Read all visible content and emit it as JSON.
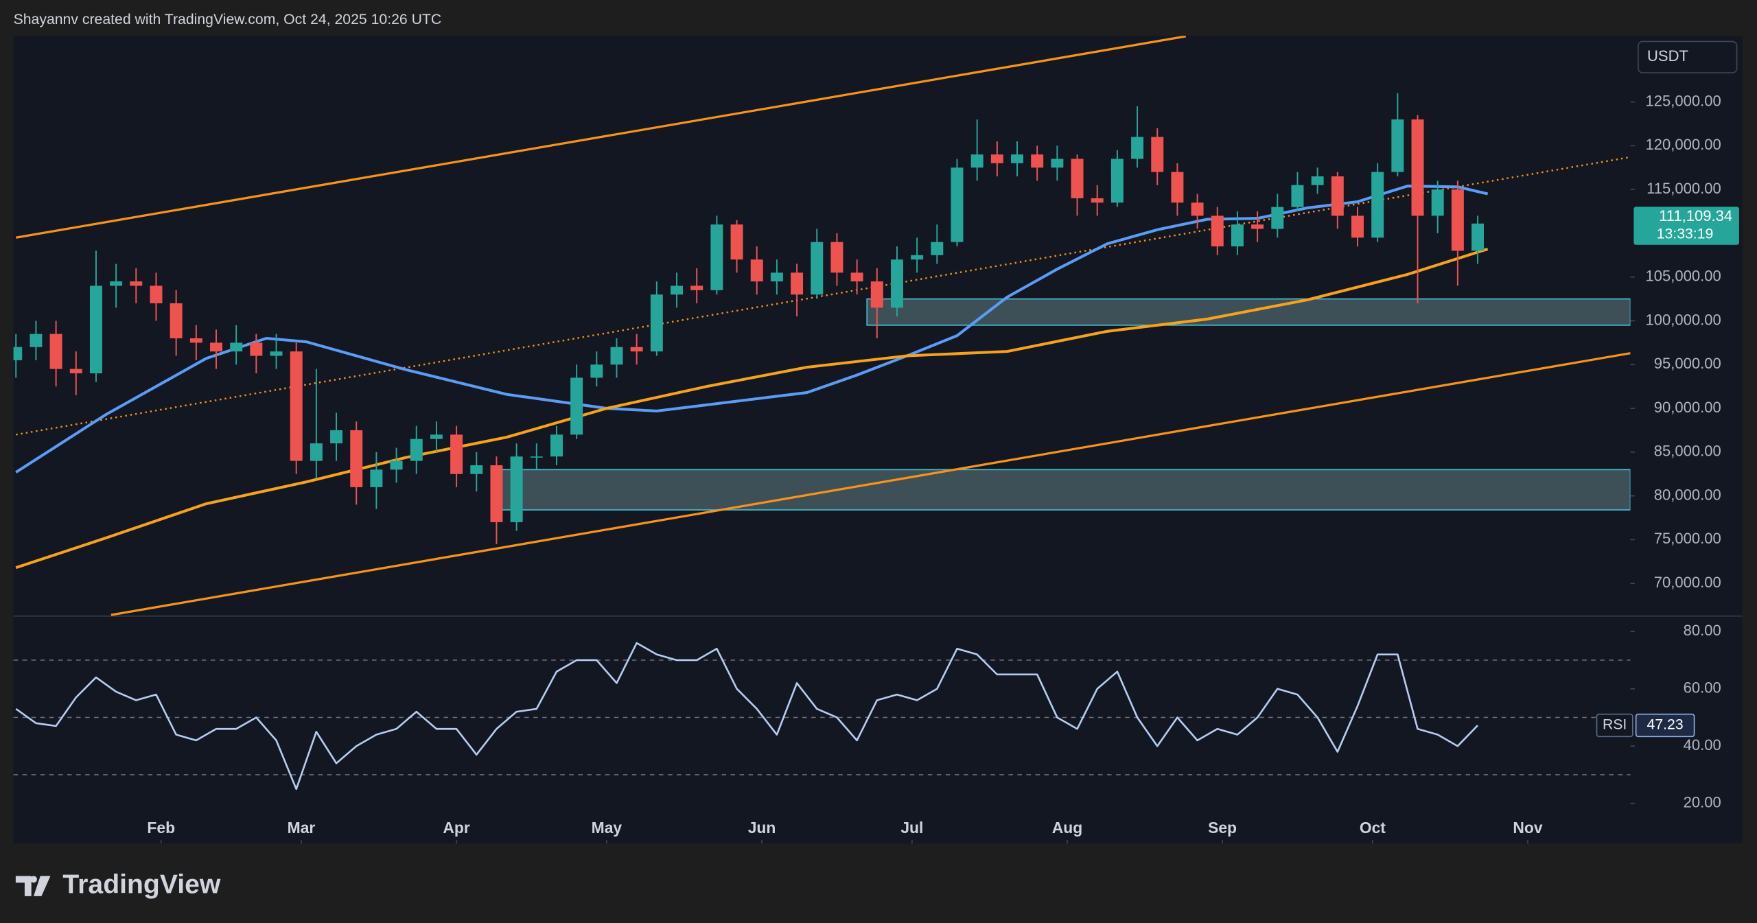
{
  "header": "Shayannv created with TradingView.com, Oct 24, 2025 10:26 UTC",
  "footer": {
    "brand": "TradingView"
  },
  "chart_data": [
    {
      "type": "candlestick",
      "currency": "USDT",
      "x": [
        2,
        6,
        10,
        14,
        18,
        22,
        26,
        30,
        34,
        38,
        42,
        46,
        50,
        54,
        58,
        62,
        66,
        70,
        74,
        78,
        82,
        86,
        90,
        94,
        98,
        102,
        106,
        110,
        114,
        118,
        122,
        126,
        130,
        134,
        138,
        142,
        146,
        150,
        154,
        158,
        162,
        166,
        170,
        174,
        178,
        182,
        186,
        190,
        194,
        198,
        202,
        206,
        210,
        214,
        218,
        222,
        226,
        230,
        234,
        238,
        242,
        246,
        250,
        254,
        258,
        262,
        266,
        270,
        274,
        278,
        282,
        286,
        290,
        294
      ],
      "open": [
        95500,
        97000,
        98500,
        94500,
        94000,
        104000,
        104500,
        104000,
        102000,
        98000,
        97500,
        96500,
        97500,
        96000,
        96500,
        84000,
        86000,
        87500,
        81000,
        83000,
        84000,
        86500,
        87000,
        82500,
        83500,
        77000,
        84500,
        84500,
        87000,
        93500,
        95000,
        97000,
        96500,
        103000,
        104000,
        103500,
        111000,
        107000,
        104500,
        105500,
        103000,
        109000,
        105500,
        104500,
        101500,
        107000,
        107500,
        109000,
        117500,
        119000,
        118000,
        119000,
        117500,
        118500,
        114000,
        113500,
        118500,
        121000,
        117000,
        113500,
        112000,
        108500,
        111000,
        110500,
        113000,
        115500,
        116500,
        112000,
        109500,
        117000,
        123000,
        112000,
        115000,
        108000
      ],
      "high": [
        98500,
        100000,
        100000,
        96500,
        108000,
        106500,
        106000,
        105500,
        103500,
        99500,
        99000,
        99500,
        98500,
        98500,
        97500,
        94500,
        89500,
        88500,
        85000,
        85500,
        88000,
        88500,
        88000,
        85000,
        84500,
        86000,
        86000,
        88000,
        95000,
        96500,
        98000,
        98500,
        104500,
        105500,
        106000,
        112000,
        111500,
        108500,
        107000,
        106500,
        110500,
        110000,
        107000,
        106000,
        108500,
        109500,
        111000,
        118500,
        123000,
        120500,
        120500,
        120000,
        120000,
        119000,
        115500,
        119500,
        124500,
        122000,
        118000,
        114500,
        113000,
        112500,
        112500,
        114500,
        117000,
        117500,
        117000,
        113000,
        118000,
        126000,
        123500,
        116000,
        116000,
        112000
      ],
      "low": [
        93500,
        95500,
        92500,
        91500,
        93000,
        101500,
        102000,
        100000,
        96000,
        95500,
        94500,
        95000,
        94000,
        94500,
        82500,
        82000,
        84000,
        79000,
        78500,
        81500,
        82500,
        85000,
        81000,
        80500,
        74500,
        76000,
        83000,
        83500,
        86500,
        92500,
        93500,
        95000,
        96000,
        101500,
        102000,
        103000,
        105500,
        103000,
        103000,
        100500,
        102500,
        104000,
        103000,
        98000,
        100500,
        105500,
        106500,
        108500,
        116000,
        116500,
        116500,
        116000,
        116000,
        112000,
        112000,
        113000,
        117500,
        115500,
        112000,
        110500,
        107500,
        107500,
        109000,
        109500,
        112500,
        114500,
        110500,
        108500,
        109000,
        116500,
        102000,
        110000,
        104000,
        106500
      ],
      "close": [
        97000,
        98500,
        94500,
        94000,
        104000,
        104500,
        104000,
        102000,
        98000,
        97500,
        96500,
        97500,
        96000,
        96500,
        84000,
        86000,
        87500,
        81000,
        83000,
        84000,
        86500,
        87000,
        82500,
        83500,
        77000,
        84500,
        84500,
        87000,
        93500,
        95000,
        97000,
        96500,
        103000,
        104000,
        103500,
        111000,
        107000,
        104500,
        105500,
        103000,
        109000,
        105500,
        104500,
        101500,
        107000,
        107500,
        109000,
        117500,
        119000,
        118000,
        119000,
        117500,
        118500,
        114000,
        113500,
        118500,
        121000,
        117000,
        113500,
        112000,
        108500,
        111000,
        110500,
        113000,
        115500,
        116500,
        112000,
        109500,
        117000,
        123000,
        112000,
        115000,
        108000,
        111109.34
      ],
      "up_color": "#26a69a",
      "down_color": "#ef5350",
      "moving_averages": [
        {
          "color": "#5b9cf6",
          "x": [
            2,
            20,
            40,
            52,
            60,
            80,
            100,
            120,
            130,
            150,
            160,
            170,
            180,
            190,
            200,
            210,
            220,
            230,
            240,
            250,
            260,
            270,
            280,
            290,
            296
          ],
          "values": [
            82700,
            89300,
            95700,
            98000,
            97600,
            94400,
            91600,
            90000,
            89700,
            91100,
            91800,
            93800,
            96000,
            98300,
            102700,
            105900,
            108800,
            110400,
            111600,
            111700,
            112900,
            113600,
            115400,
            115300,
            114500
          ]
        },
        {
          "color": "#f7a21b",
          "x": [
            2,
            20,
            40,
            60,
            80,
            100,
            120,
            140,
            160,
            180,
            200,
            220,
            240,
            260,
            280,
            296
          ],
          "values": [
            71800,
            75200,
            79100,
            81600,
            84400,
            86700,
            90000,
            92500,
            94700,
            96000,
            96500,
            98800,
            100200,
            102400,
            105300,
            108200
          ]
        }
      ],
      "trend_lines": [
        {
          "color": "#f7931a",
          "style": "solid",
          "x": [
            2,
            235.7
          ],
          "values": [
            109500,
            132500
          ]
        },
        {
          "color": "#f7931a",
          "style": "dotted",
          "x": [
            2,
            324.5
          ],
          "values": [
            87000,
            118700
          ]
        },
        {
          "color": "#f7931a",
          "style": "solid",
          "x": [
            21,
            324.5
          ],
          "values": [
            66400,
            96300
          ]
        }
      ],
      "zones": [
        {
          "x": [
            172,
            324.5
          ],
          "values": [
            99500,
            102500
          ]
        },
        {
          "x": [
            99,
            324.5
          ],
          "values": [
            78400,
            83000
          ]
        }
      ],
      "last_price": {
        "value": 111109.34,
        "label": "111,109.34"
      },
      "countdown": "13:33:19",
      "xlim": [
        1.5,
        324.5
      ],
      "ylim": [
        66400,
        132550
      ],
      "yticks": [
        {
          "value": 125000,
          "label": "125,000.00"
        },
        {
          "value": 120000,
          "label": "120,000.00"
        },
        {
          "value": 115000,
          "label": "115,000.00"
        },
        {
          "value": 105000,
          "label": "105,000.00"
        },
        {
          "value": 100000,
          "label": "100,000.00"
        },
        {
          "value": 95000,
          "label": "95,000.00"
        },
        {
          "value": 90000,
          "label": "90,000.00"
        },
        {
          "value": 85000,
          "label": "85,000.00"
        },
        {
          "value": 80000,
          "label": "80,000.00"
        },
        {
          "value": 75000,
          "label": "75,000.00"
        },
        {
          "value": 70000,
          "label": "70,000.00"
        }
      ]
    },
    {
      "type": "line",
      "x": [
        2,
        6,
        10,
        14,
        18,
        22,
        26,
        30,
        34,
        38,
        42,
        46,
        50,
        54,
        58,
        62,
        66,
        70,
        74,
        78,
        82,
        86,
        90,
        94,
        98,
        102,
        106,
        110,
        114,
        118,
        122,
        126,
        130,
        134,
        138,
        142,
        146,
        150,
        154,
        158,
        162,
        166,
        170,
        174,
        178,
        182,
        186,
        190,
        194,
        198,
        202,
        206,
        210,
        214,
        218,
        222,
        226,
        230,
        234,
        238,
        242,
        246,
        250,
        254,
        258,
        262,
        266,
        270,
        274,
        278,
        282,
        286,
        290,
        294
      ],
      "series": [
        {
          "name": "RSI",
          "color": "#b4cdf2",
          "values": [
            53,
            48,
            47,
            57,
            64,
            59,
            56,
            58,
            44,
            42,
            46,
            46,
            50,
            42,
            25,
            45,
            34,
            40,
            44,
            46,
            52,
            46,
            46,
            37,
            46,
            52,
            53,
            66,
            70,
            70,
            62,
            76,
            72,
            70,
            70,
            74,
            60,
            53,
            44,
            62,
            53,
            50,
            42,
            56,
            58,
            56,
            60,
            74,
            72,
            65,
            65,
            65,
            50,
            46,
            60,
            66,
            50,
            40,
            50,
            42,
            46,
            44,
            50,
            60,
            58,
            50,
            38,
            54,
            72,
            72,
            46,
            44,
            40,
            47.23
          ]
        }
      ],
      "last_value": {
        "value": 47.23,
        "label": "47.23"
      },
      "levels": [
        70,
        50,
        30
      ],
      "xlim": [
        1.5,
        324.5
      ],
      "ylim": [
        6,
        85
      ],
      "yticks": [
        {
          "value": 80,
          "label": "80.00"
        },
        {
          "value": 60,
          "label": "60.00"
        },
        {
          "value": 40,
          "label": "40.00"
        },
        {
          "value": 20,
          "label": "20.00"
        }
      ],
      "xticks": [
        {
          "value": 31,
          "label": "Feb"
        },
        {
          "value": 59,
          "label": "Mar"
        },
        {
          "value": 90,
          "label": "Apr"
        },
        {
          "value": 120,
          "label": "May"
        },
        {
          "value": 151,
          "label": "Jun"
        },
        {
          "value": 181,
          "label": "Jul"
        },
        {
          "value": 212,
          "label": "Aug"
        },
        {
          "value": 243,
          "label": "Sep"
        },
        {
          "value": 273,
          "label": "Oct"
        },
        {
          "value": 304,
          "label": "Nov"
        }
      ]
    }
  ]
}
